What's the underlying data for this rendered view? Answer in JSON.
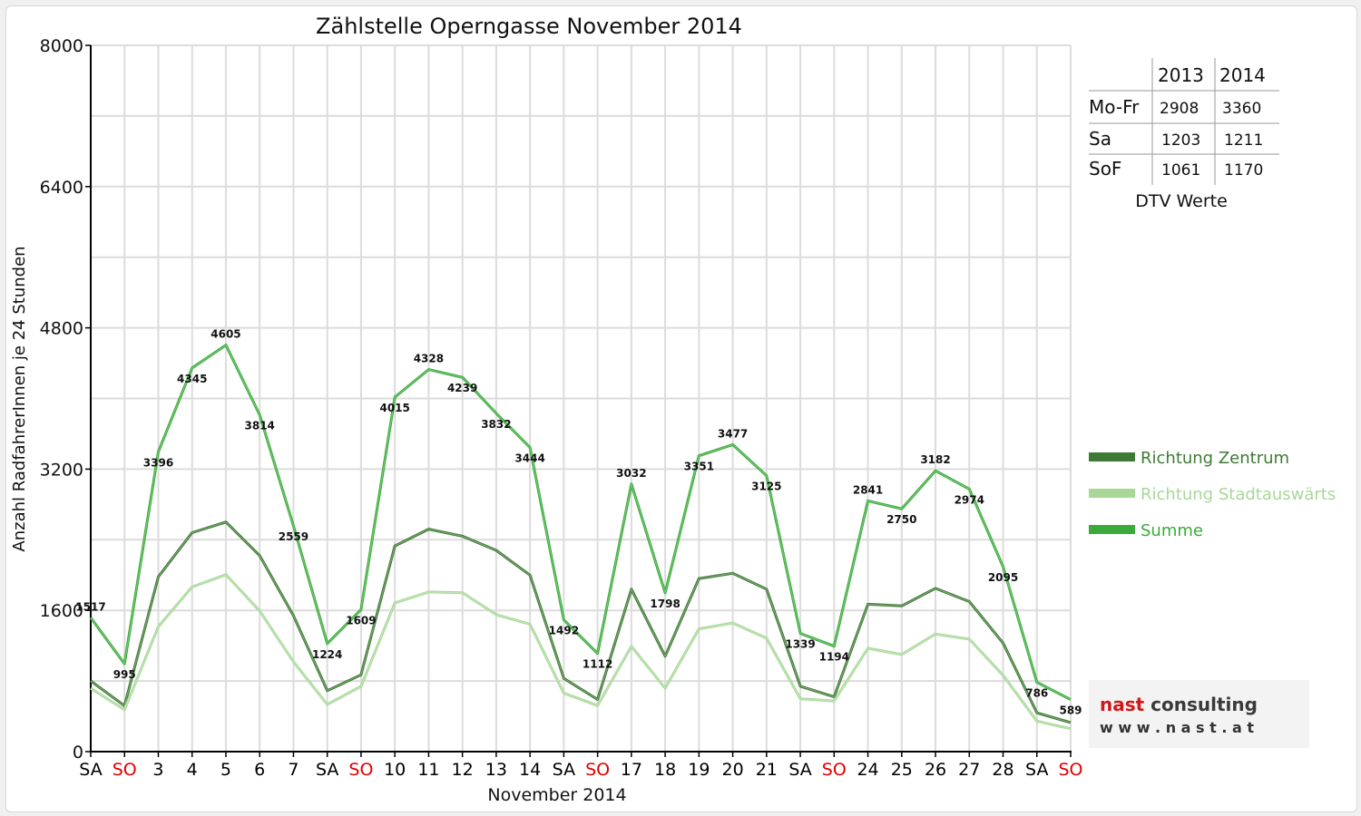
{
  "chart_data": {
    "type": "line",
    "title": "Zählstelle Operngasse November 2014",
    "xlabel": "November 2014",
    "ylabel": "Anzahl RadfahrerInnen je 24 Stunden",
    "ylim": [
      0,
      8000
    ],
    "yticks": [
      "0",
      "1600",
      "3200",
      "4800",
      "6400",
      "8000"
    ],
    "grid": true,
    "legend_position": "right",
    "categories": [
      "SA",
      "SO",
      "3",
      "4",
      "5",
      "6",
      "7",
      "SA",
      "SO",
      "10",
      "11",
      "12",
      "13",
      "14",
      "SA",
      "SO",
      "17",
      "18",
      "19",
      "20",
      "21",
      "SA",
      "SO",
      "24",
      "25",
      "26",
      "27",
      "28",
      "SA",
      "SO"
    ],
    "category_colors": [
      "#000000",
      "#e00000",
      "#000000",
      "#000000",
      "#000000",
      "#000000",
      "#000000",
      "#000000",
      "#e00000",
      "#000000",
      "#000000",
      "#000000",
      "#000000",
      "#000000",
      "#000000",
      "#e00000",
      "#000000",
      "#000000",
      "#000000",
      "#000000",
      "#000000",
      "#000000",
      "#e00000",
      "#000000",
      "#000000",
      "#000000",
      "#000000",
      "#000000",
      "#000000",
      "#e00000"
    ],
    "series": [
      {
        "name": "Richtung Zentrum",
        "color": "#3f7a35",
        "values": [
          800,
          520,
          1980,
          2480,
          2600,
          2220,
          1540,
          690,
          870,
          2330,
          2520,
          2440,
          2280,
          2000,
          830,
          590,
          1840,
          1080,
          1960,
          2020,
          1840,
          740,
          620,
          1670,
          1650,
          1850,
          1700,
          1230,
          440,
          330
        ],
        "labels": []
      },
      {
        "name": "Richtung Stadtauswärts",
        "color": "#a8d898",
        "values": [
          717,
          475,
          1416,
          1865,
          2005,
          1594,
          1019,
          534,
          739,
          1685,
          1808,
          1799,
          1552,
          1444,
          662,
          522,
          1192,
          718,
          1391,
          1457,
          1285,
          599,
          574,
          1171,
          1100,
          1332,
          1274,
          865,
          346,
          259
        ],
        "labels": []
      },
      {
        "name": "Summe",
        "color": "#3aab3a",
        "values": [
          1517,
          995,
          3396,
          4345,
          4605,
          3814,
          2559,
          1224,
          1609,
          4015,
          4328,
          4239,
          3832,
          3444,
          1492,
          1112,
          3032,
          1798,
          3351,
          3477,
          3125,
          1339,
          1194,
          2841,
          2750,
          3182,
          2974,
          2095,
          786,
          589
        ],
        "labels": [
          "1517",
          "995",
          "3396",
          "4345",
          "4605",
          "3814",
          "2559",
          "1224",
          "1609",
          "4015",
          "4328",
          "4239",
          "3832",
          "3444",
          "1492",
          "1112",
          "3032",
          "1798",
          "3351",
          "3477",
          "3125",
          "1339",
          "1194",
          "2841",
          "2750",
          "3182",
          "2974",
          "2095",
          "786",
          "589"
        ]
      }
    ]
  },
  "dtv_table": {
    "caption": "DTV Werte",
    "headers": [
      "",
      "2013",
      "2014"
    ],
    "rows": [
      [
        "Mo-Fr",
        "2908",
        "3360"
      ],
      [
        "Sa",
        "1203",
        "1211"
      ],
      [
        "SoF",
        "1061",
        "1170"
      ]
    ]
  },
  "logo": {
    "name": "nast consulting",
    "url": "w w w . n a s t . a t"
  }
}
